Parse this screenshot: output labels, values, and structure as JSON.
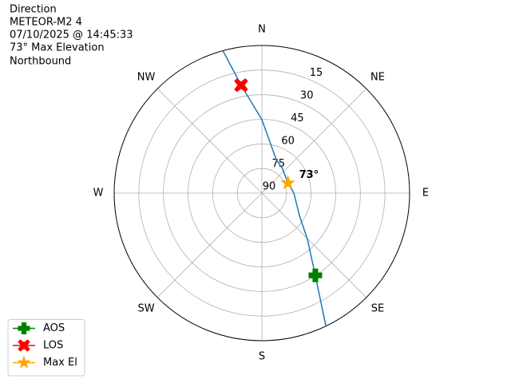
{
  "chart_data": {
    "type": "polar",
    "title_lines": [
      "Direction",
      "METEOR-M2 4",
      "07/10/2025 @ 14:45:33",
      "73° Max Elevation",
      "Northbound"
    ],
    "rlim": [
      90,
      0
    ],
    "rticks": [
      15,
      30,
      45,
      60,
      75,
      90
    ],
    "xticks": [
      {
        "value": 0,
        "label": "N"
      },
      {
        "value": 45,
        "label": "NE"
      },
      {
        "value": 90,
        "label": "E"
      },
      {
        "value": 135,
        "label": "SE"
      },
      {
        "value": 180,
        "label": "S"
      },
      {
        "value": 225,
        "label": "SW"
      },
      {
        "value": 270,
        "label": "W"
      },
      {
        "value": 315,
        "label": "NW"
      }
    ],
    "grid": true,
    "track": {
      "color": "#1f77b4",
      "x": [
        154.3,
        147,
        135.5,
        120.8,
        90,
        69,
        40,
        23.2,
        0,
        349.1,
        344.7
      ],
      "y": [
        0,
        30.2,
        50.4,
        63.4,
        70.5,
        73,
        70.5,
        67.8,
        45.2,
        23,
        0
      ]
    },
    "series": [
      {
        "name": "AOS",
        "color": "#008000",
        "marker": "plus",
        "x": [
          147
        ],
        "values": [
          30.2
        ]
      },
      {
        "name": "LOS",
        "color": "#ff0000",
        "marker": "x",
        "x": [
          349.1
        ],
        "values": [
          23
        ]
      },
      {
        "name": "Max El",
        "color": "#ffa500",
        "marker": "star",
        "x": [
          69
        ],
        "values": [
          73
        ]
      }
    ],
    "annotations": [
      {
        "text": "73°"
      }
    ],
    "legend": "lower left"
  }
}
